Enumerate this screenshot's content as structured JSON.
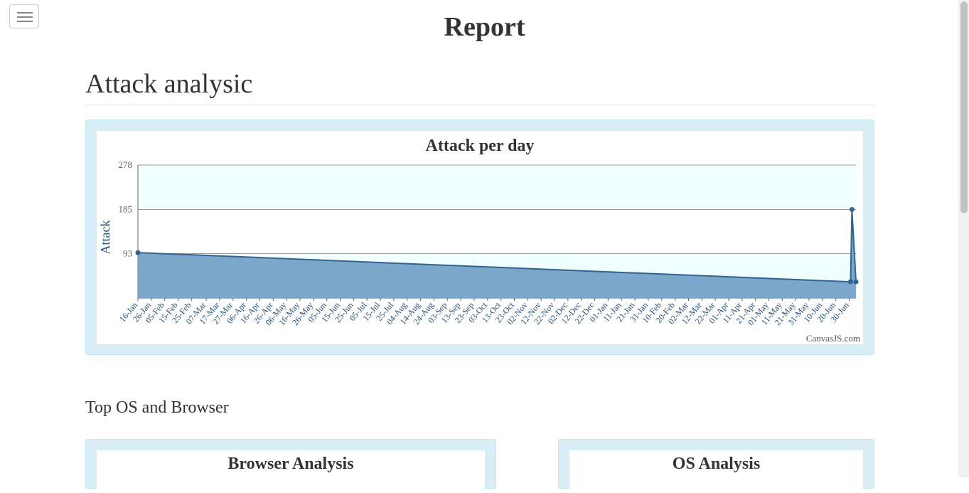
{
  "page": {
    "title": "Report",
    "section_title": "Attack analysic",
    "sub_section_title": "Top OS and Browser"
  },
  "attack_chart": {
    "credit": "CanvasJS.com"
  },
  "browser_chart": {
    "title": "Browser Analysis"
  },
  "os_chart": {
    "title": "OS Analysis"
  },
  "colors": {
    "area_fill": "#7ba7cb",
    "line": "#2f6497",
    "plot_bg": "#f0ffff",
    "axis_label": "#1f4f8a",
    "panel": "#d9edf7"
  },
  "chart_data": {
    "type": "area",
    "title": "Attack per day",
    "xlabel": "",
    "ylabel": "Attack",
    "ylim": [
      0,
      278
    ],
    "y_ticks": [
      93,
      185,
      278
    ],
    "grid": true,
    "x_tick_labels": [
      "16-Jan",
      "26-Jan",
      "05-Feb",
      "15-Feb",
      "25-Feb",
      "07-Mar",
      "17-Mar",
      "27-Mar",
      "06-Apr",
      "16-Apr",
      "26-Apr",
      "06-May",
      "16-May",
      "26-May",
      "05-Jun",
      "15-Jun",
      "25-Jun",
      "05-Jul",
      "15-Jul",
      "25-Jul",
      "04-Aug",
      "14-Aug",
      "24-Aug",
      "03-Sep",
      "13-Sep",
      "23-Sep",
      "03-Oct",
      "13-Oct",
      "23-Oct",
      "02-Nov",
      "12-Nov",
      "22-Nov",
      "02-Dec",
      "12-Dec",
      "22-Dec",
      "01-Jan",
      "11-Jan",
      "21-Jan",
      "31-Jan",
      "10-Feb",
      "20-Feb",
      "02-Mar",
      "12-Mar",
      "22-Mar",
      "01-Apr",
      "11-Apr",
      "21-Apr",
      "01-May",
      "11-May",
      "21-May",
      "31-May",
      "10-Jun",
      "20-Jun",
      "30-Jun"
    ],
    "points": [
      {
        "x": "16-Jan",
        "y": 95
      },
      {
        "x": "01-Jul",
        "y": 34
      },
      {
        "x": "02-Jul",
        "y": 185
      },
      {
        "x": "05-Jul",
        "y": 34
      }
    ]
  }
}
